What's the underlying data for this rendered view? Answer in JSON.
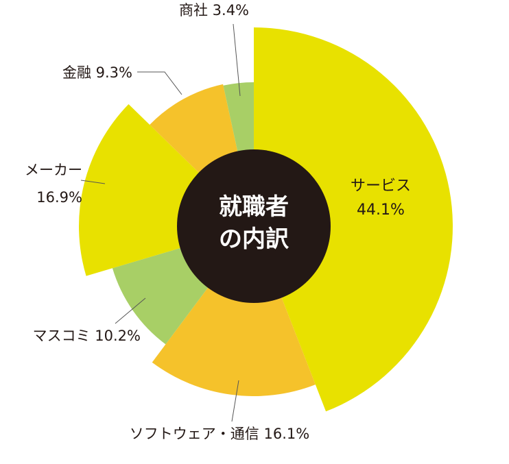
{
  "chart_data": {
    "type": "pie",
    "title": "",
    "center_label": [
      "就職者",
      "の内訳"
    ],
    "slices": [
      {
        "name": "サービス",
        "value": 44.1,
        "value_label": "44.1%",
        "color": "#e8e100"
      },
      {
        "name": "ソフトウェア・通信",
        "value": 16.1,
        "value_label": "16.1%",
        "color": "#f5c22b"
      },
      {
        "name": "マスコミ",
        "value": 10.2,
        "value_label": "10.2%",
        "color": "#a8cf66"
      },
      {
        "name": "メーカー",
        "value": 16.9,
        "value_label": "16.9%",
        "color": "#e8e100"
      },
      {
        "name": "金融",
        "value": 9.3,
        "value_label": "9.3%",
        "color": "#f5c22b"
      },
      {
        "name": "商社",
        "value": 3.4,
        "value_label": "3.4%",
        "color": "#a8cf66"
      }
    ],
    "center_color": "#231815"
  }
}
